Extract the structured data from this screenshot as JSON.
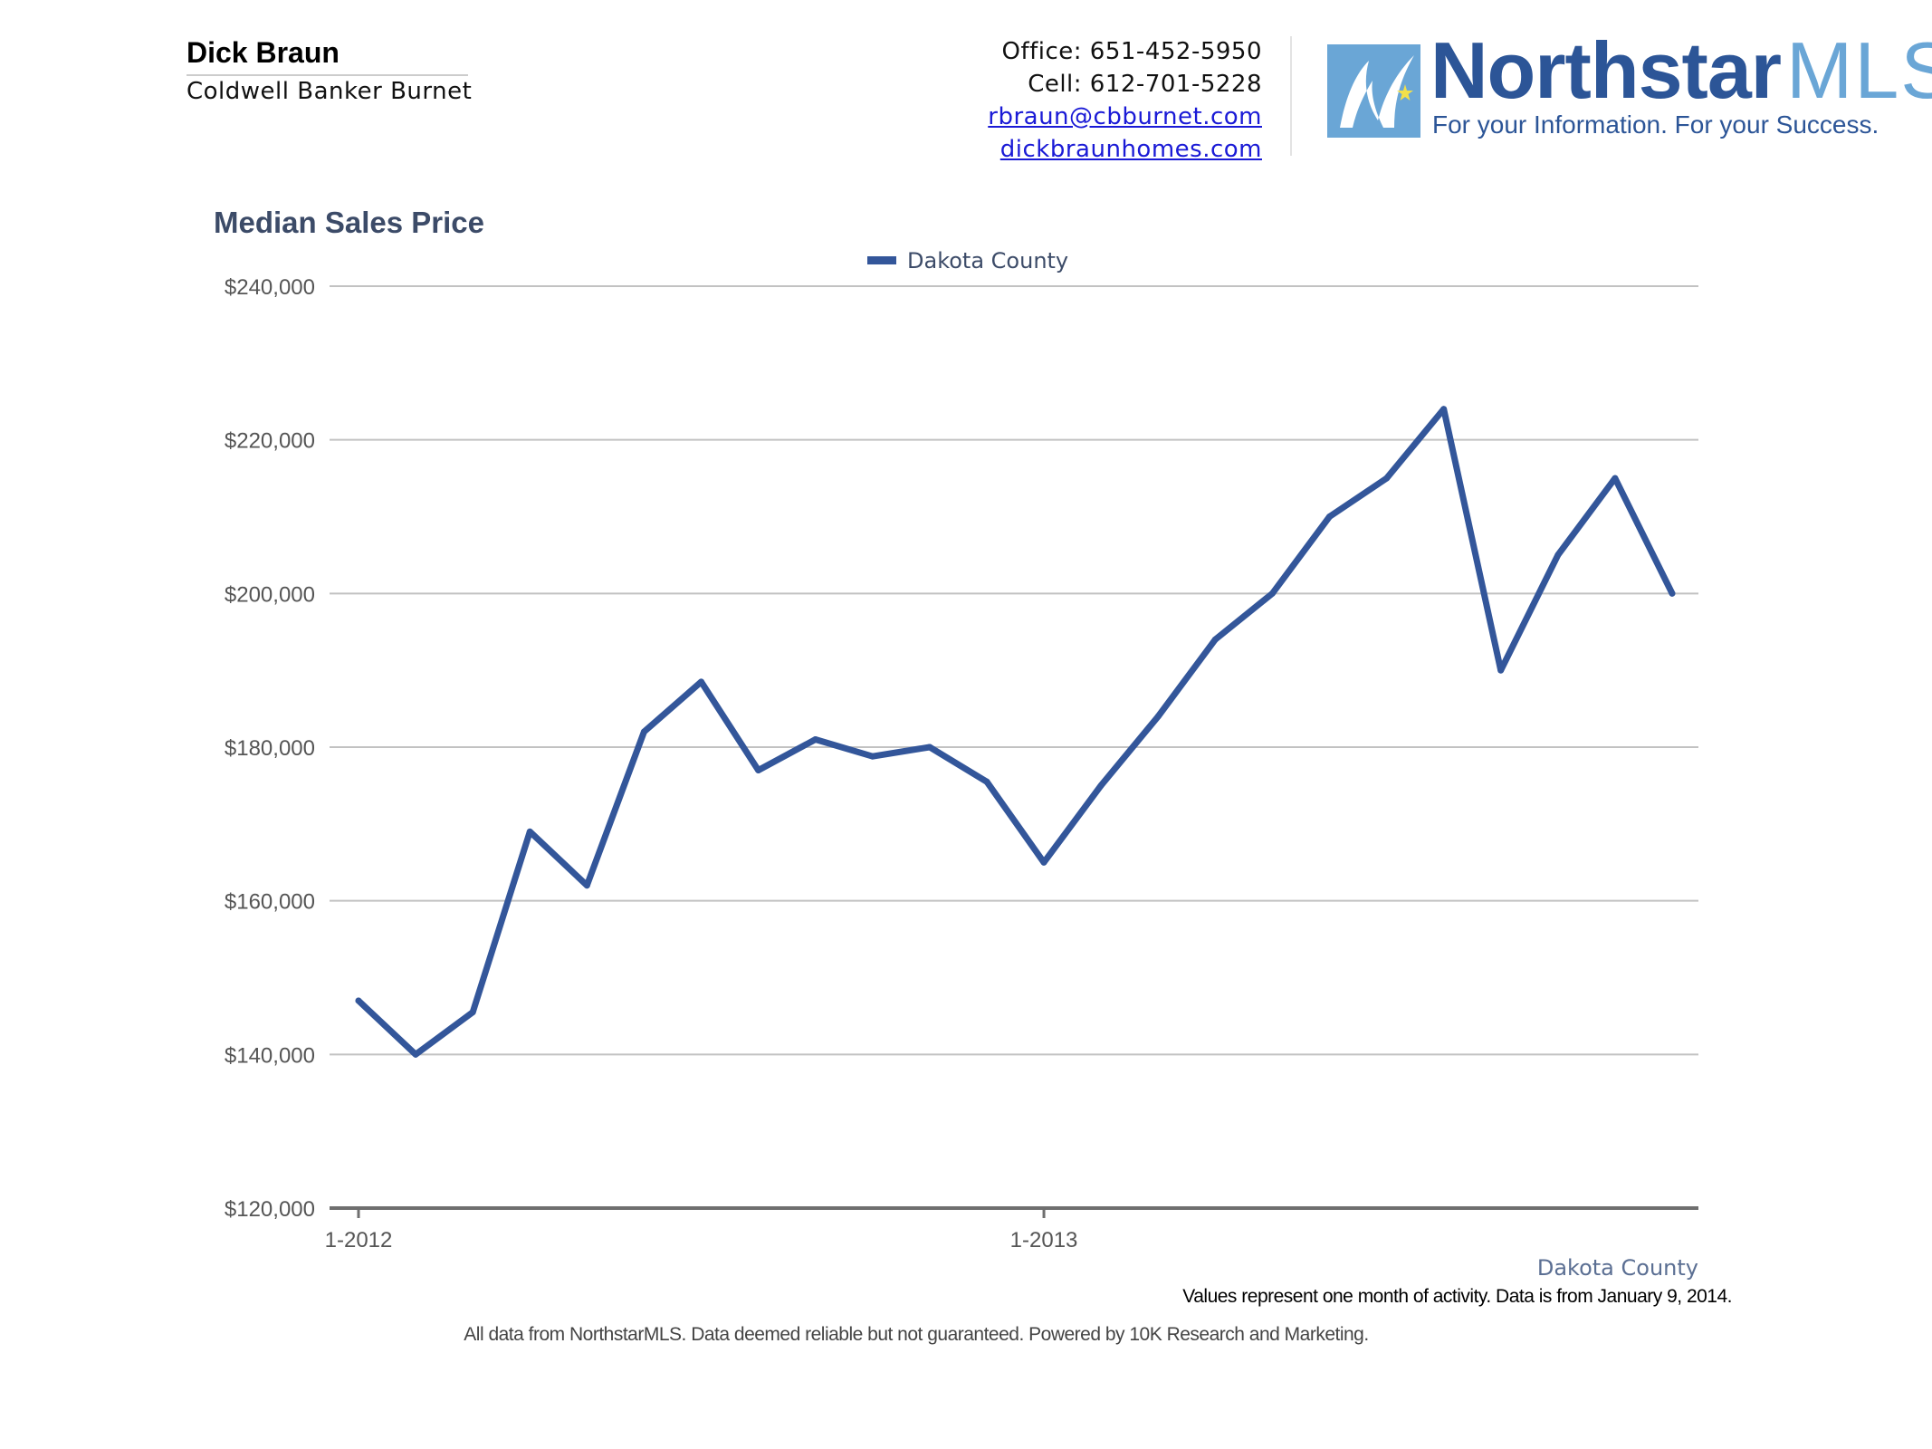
{
  "agent": {
    "name": "Dick Braun",
    "company": "Coldwell Banker Burnet"
  },
  "contact": {
    "office": "Office: 651-452-5950",
    "cell": "Cell: 612-701-5228",
    "email": "rbraun@cbburnet.com",
    "website": "dickbraunhomes.com"
  },
  "logo": {
    "brand": "Northstar",
    "brand_suffix": "MLS",
    "tagline": "For your Information. For your Success."
  },
  "colors": {
    "series": "#33569a",
    "title": "#3c4b68",
    "brand_dark": "#2c5597",
    "brand_light": "#6aa6d6"
  },
  "chart_data": {
    "type": "line",
    "title": "Median Sales Price",
    "legend": "top-center",
    "corner_label": "Dakota County",
    "ylim": [
      120000,
      240000
    ],
    "y_ticks": [
      120000,
      140000,
      160000,
      180000,
      200000,
      220000,
      240000
    ],
    "y_tick_labels": [
      "$120,000",
      "$140,000",
      "$160,000",
      "$180,000",
      "$200,000",
      "$220,000",
      "$240,000"
    ],
    "x_tick_labels": [
      {
        "index": 0,
        "label": "1-2012"
      },
      {
        "index": 12,
        "label": "1-2013"
      }
    ],
    "grid": true,
    "series": [
      {
        "name": "Dakota County",
        "values": [
          147000,
          140000,
          145500,
          169000,
          162000,
          182000,
          188500,
          177000,
          181000,
          178800,
          180000,
          175500,
          165000,
          175000,
          184000,
          194000,
          200000,
          210000,
          215000,
          224000,
          190000,
          205000,
          215000,
          200000
        ]
      }
    ]
  },
  "footnote": "Values represent one month of activity. Data is from January 9, 2014.",
  "disclaimer": "All data from NorthstarMLS. Data deemed reliable but not guaranteed. Powered by 10K Research and Marketing."
}
